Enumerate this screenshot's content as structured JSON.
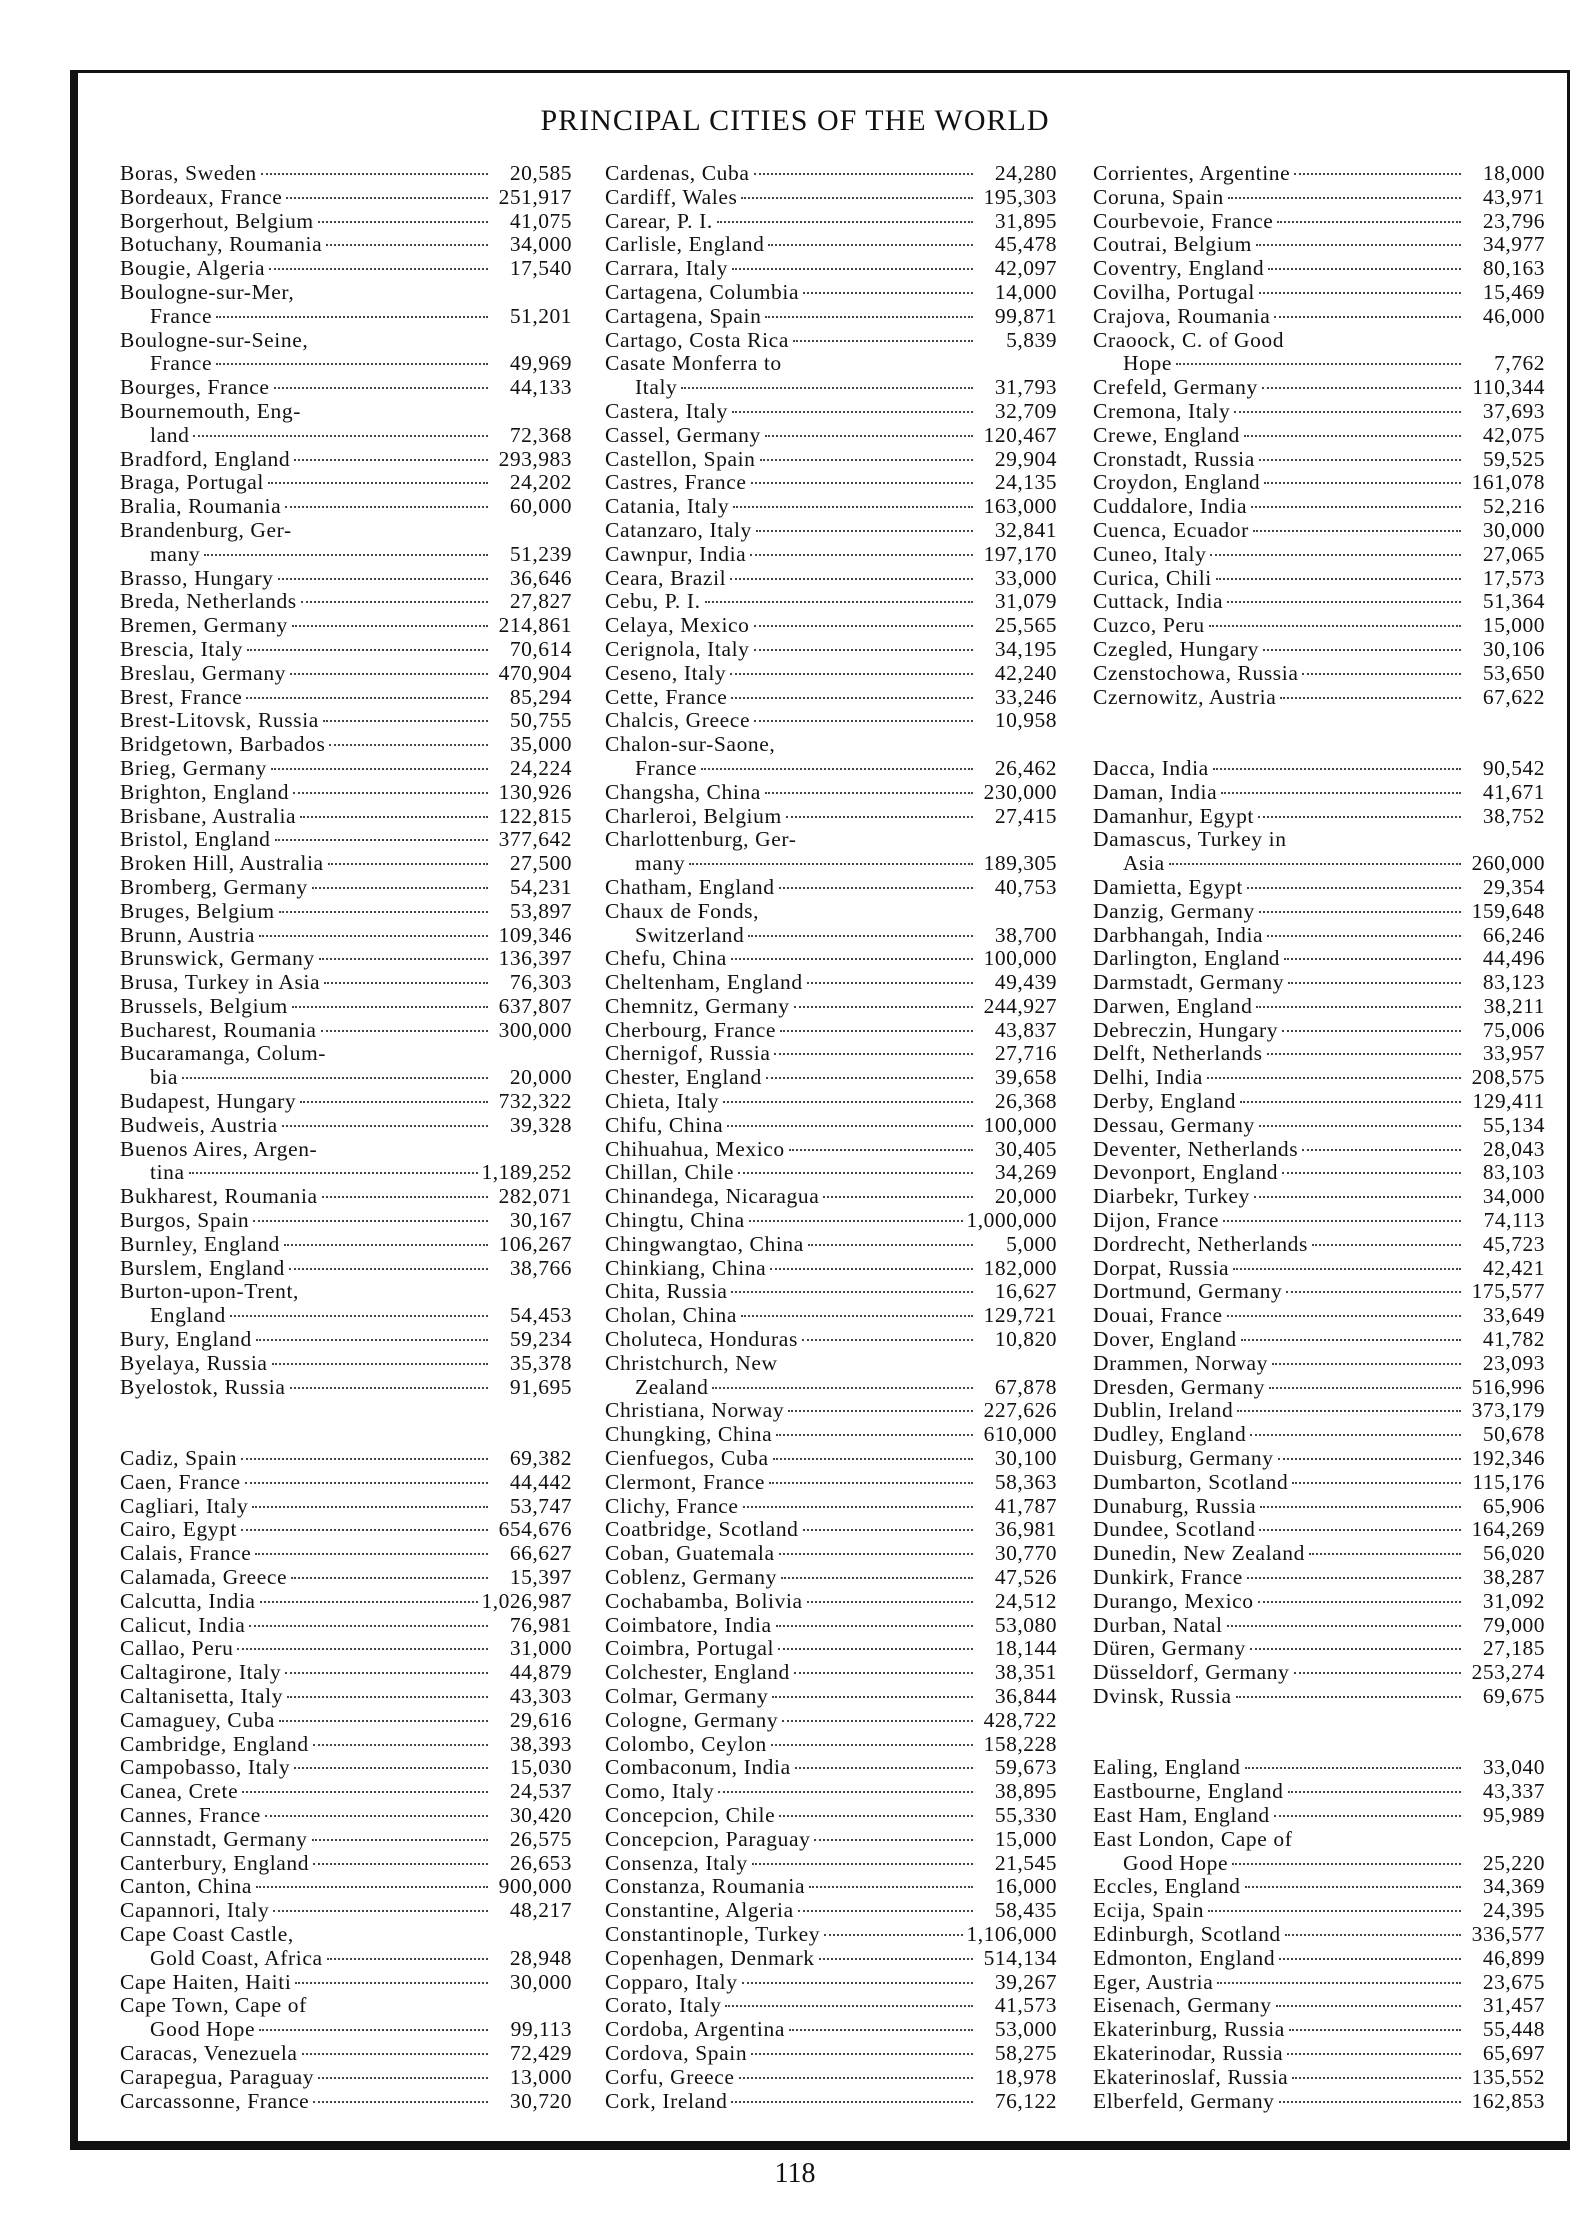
{
  "title": "PRINCIPAL CITIES OF THE WORLD",
  "page_number": "118",
  "columns": [
    [
      {
        "n": "Boras, Sweden",
        "v": "20,585"
      },
      {
        "n": "Bordeaux, France",
        "v": "251,917"
      },
      {
        "n": "Borgerhout, Belgium",
        "v": "41,075"
      },
      {
        "n": "Botuchany, Roumania",
        "v": "34,000"
      },
      {
        "n": "Bougie, Algeria",
        "v": "17,540"
      },
      {
        "n": "Boulogne-sur-Mer,",
        "v": ""
      },
      {
        "n": "France",
        "v": "51,201",
        "c": true
      },
      {
        "n": "Boulogne-sur-Seine,",
        "v": ""
      },
      {
        "n": "France",
        "v": "49,969",
        "c": true
      },
      {
        "n": "Bourges, France",
        "v": "44,133"
      },
      {
        "n": "Bournemouth, Eng-",
        "v": ""
      },
      {
        "n": "land",
        "v": "72,368",
        "c": true
      },
      {
        "n": "Bradford, England",
        "v": "293,983"
      },
      {
        "n": "Braga, Portugal",
        "v": "24,202"
      },
      {
        "n": "Bralia, Roumania",
        "v": "60,000"
      },
      {
        "n": "Brandenburg, Ger-",
        "v": ""
      },
      {
        "n": "many",
        "v": "51,239",
        "c": true
      },
      {
        "n": "Brasso, Hungary",
        "v": "36,646"
      },
      {
        "n": "Breda, Netherlands",
        "v": "27,827"
      },
      {
        "n": "Bremen, Germany",
        "v": "214,861"
      },
      {
        "n": "Brescia, Italy",
        "v": "70,614"
      },
      {
        "n": "Breslau, Germany",
        "v": "470,904"
      },
      {
        "n": "Brest, France",
        "v": "85,294"
      },
      {
        "n": "Brest-Litovsk, Russia",
        "v": "50,755"
      },
      {
        "n": "Bridgetown, Barbados",
        "v": "35,000"
      },
      {
        "n": "Brieg, Germany",
        "v": "24,224"
      },
      {
        "n": "Brighton, England",
        "v": "130,926"
      },
      {
        "n": "Brisbane, Australia",
        "v": "122,815"
      },
      {
        "n": "Bristol, England",
        "v": "377,642"
      },
      {
        "n": "Broken Hill, Australia",
        "v": "27,500"
      },
      {
        "n": "Bromberg, Germany",
        "v": "54,231"
      },
      {
        "n": "Bruges, Belgium",
        "v": "53,897"
      },
      {
        "n": "Brunn, Austria",
        "v": "109,346"
      },
      {
        "n": "Brunswick, Germany",
        "v": "136,397"
      },
      {
        "n": "Brusa, Turkey in Asia",
        "v": "76,303"
      },
      {
        "n": "Brussels, Belgium",
        "v": "637,807"
      },
      {
        "n": "Bucharest, Roumania",
        "v": "300,000"
      },
      {
        "n": "Bucaramanga, Colum-",
        "v": ""
      },
      {
        "n": "bia",
        "v": "20,000",
        "c": true
      },
      {
        "n": "Budapest, Hungary",
        "v": "732,322"
      },
      {
        "n": "Budweis, Austria",
        "v": "39,328"
      },
      {
        "n": "Buenos Aires, Argen-",
        "v": ""
      },
      {
        "n": "tina",
        "v": "1,189,252",
        "c": true
      },
      {
        "n": "Bukharest, Roumania",
        "v": "282,071"
      },
      {
        "n": "Burgos, Spain",
        "v": "30,167"
      },
      {
        "n": "Burnley, England",
        "v": "106,267"
      },
      {
        "n": "Burslem, England",
        "v": "38,766"
      },
      {
        "n": "Burton-upon-Trent,",
        "v": ""
      },
      {
        "n": "England",
        "v": "54,453",
        "c": true
      },
      {
        "n": "Bury, England",
        "v": "59,234"
      },
      {
        "n": "Byelaya, Russia",
        "v": "35,378"
      },
      {
        "n": "Byelostok, Russia",
        "v": "91,695"
      },
      {
        "n": "",
        "v": ""
      },
      {
        "n": "",
        "v": ""
      },
      {
        "n": "Cadiz, Spain",
        "v": "69,382"
      },
      {
        "n": "Caen, France",
        "v": "44,442"
      },
      {
        "n": "Cagliari, Italy",
        "v": "53,747"
      },
      {
        "n": "Cairo, Egypt",
        "v": "654,676"
      },
      {
        "n": "Calais, France",
        "v": "66,627"
      },
      {
        "n": "Calamada, Greece",
        "v": "15,397"
      },
      {
        "n": "Calcutta, India",
        "v": "1,026,987"
      },
      {
        "n": "Calicut, India",
        "v": "76,981"
      },
      {
        "n": "Callao, Peru",
        "v": "31,000"
      },
      {
        "n": "Caltagirone, Italy",
        "v": "44,879"
      },
      {
        "n": "Caltanisetta, Italy",
        "v": "43,303"
      },
      {
        "n": "Camaguey, Cuba",
        "v": "29,616"
      },
      {
        "n": "Cambridge, England",
        "v": "38,393"
      },
      {
        "n": "Campobasso, Italy",
        "v": "15,030"
      },
      {
        "n": "Canea, Crete",
        "v": "24,537"
      },
      {
        "n": "Cannes, France",
        "v": "30,420"
      },
      {
        "n": "Cannstadt, Germany",
        "v": "26,575"
      },
      {
        "n": "Canterbury, England",
        "v": "26,653"
      },
      {
        "n": "Canton, China",
        "v": "900,000"
      },
      {
        "n": "Capannori, Italy",
        "v": "48,217"
      },
      {
        "n": "Cape Coast Castle,",
        "v": ""
      },
      {
        "n": "Gold Coast, Africa",
        "v": "28,948",
        "c": true
      },
      {
        "n": "Cape Haiten, Haiti",
        "v": "30,000"
      },
      {
        "n": "Cape Town, Cape of",
        "v": ""
      },
      {
        "n": "Good Hope",
        "v": "99,113",
        "c": true
      },
      {
        "n": "Caracas, Venezuela",
        "v": "72,429"
      },
      {
        "n": "Carapegua, Paraguay",
        "v": "13,000"
      },
      {
        "n": "Carcassonne, France",
        "v": "30,720"
      }
    ],
    [
      {
        "n": "Cardenas, Cuba",
        "v": "24,280"
      },
      {
        "n": "Cardiff, Wales",
        "v": "195,303"
      },
      {
        "n": "Carear, P. I.",
        "v": "31,895"
      },
      {
        "n": "Carlisle, England",
        "v": "45,478"
      },
      {
        "n": "Carrara, Italy",
        "v": "42,097"
      },
      {
        "n": "Cartagena, Columbia",
        "v": "14,000"
      },
      {
        "n": "Cartagena, Spain",
        "v": "99,871"
      },
      {
        "n": "Cartago, Costa Rica",
        "v": "5,839"
      },
      {
        "n": "Casate Monferra to",
        "v": ""
      },
      {
        "n": "Italy",
        "v": "31,793",
        "c": true
      },
      {
        "n": "Castera, Italy",
        "v": "32,709"
      },
      {
        "n": "Cassel, Germany",
        "v": "120,467"
      },
      {
        "n": "Castellon, Spain",
        "v": "29,904"
      },
      {
        "n": "Castres, France",
        "v": "24,135"
      },
      {
        "n": "Catania, Italy",
        "v": "163,000"
      },
      {
        "n": "Catanzaro, Italy",
        "v": "32,841"
      },
      {
        "n": "Cawnpur, India",
        "v": "197,170"
      },
      {
        "n": "Ceara, Brazil",
        "v": "33,000"
      },
      {
        "n": "Cebu, P. I.",
        "v": "31,079"
      },
      {
        "n": "Celaya, Mexico",
        "v": "25,565"
      },
      {
        "n": "Cerignola, Italy",
        "v": "34,195"
      },
      {
        "n": "Ceseno, Italy",
        "v": "42,240"
      },
      {
        "n": "Cette, France",
        "v": "33,246"
      },
      {
        "n": "Chalcis, Greece",
        "v": "10,958"
      },
      {
        "n": "Chalon-sur-Saone,",
        "v": ""
      },
      {
        "n": "France",
        "v": "26,462",
        "c": true
      },
      {
        "n": "Changsha, China",
        "v": "230,000"
      },
      {
        "n": "Charleroi, Belgium",
        "v": "27,415"
      },
      {
        "n": "Charlottenburg, Ger-",
        "v": ""
      },
      {
        "n": "many",
        "v": "189,305",
        "c": true
      },
      {
        "n": "Chatham, England",
        "v": "40,753"
      },
      {
        "n": "Chaux de Fonds,",
        "v": ""
      },
      {
        "n": "Switzerland",
        "v": "38,700",
        "c": true
      },
      {
        "n": "Chefu, China",
        "v": "100,000"
      },
      {
        "n": "Cheltenham, England",
        "v": "49,439"
      },
      {
        "n": "Chemnitz, Germany",
        "v": "244,927"
      },
      {
        "n": "Cherbourg, France",
        "v": "43,837"
      },
      {
        "n": "Chernigof, Russia",
        "v": "27,716"
      },
      {
        "n": "Chester, England",
        "v": "39,658"
      },
      {
        "n": "Chieta, Italy",
        "v": "26,368"
      },
      {
        "n": "Chifu, China",
        "v": "100,000"
      },
      {
        "n": "Chihuahua, Mexico",
        "v": "30,405"
      },
      {
        "n": "Chillan, Chile",
        "v": "34,269"
      },
      {
        "n": "Chinandega, Nicaragua",
        "v": "20,000"
      },
      {
        "n": "Chingtu, China",
        "v": "1,000,000"
      },
      {
        "n": "Chingwangtao, China",
        "v": "5,000"
      },
      {
        "n": "Chinkiang, China",
        "v": "182,000"
      },
      {
        "n": "Chita, Russia",
        "v": "16,627"
      },
      {
        "n": "Cholan, China",
        "v": "129,721"
      },
      {
        "n": "Choluteca, Honduras",
        "v": "10,820"
      },
      {
        "n": "Christchurch, New",
        "v": ""
      },
      {
        "n": "Zealand",
        "v": "67,878",
        "c": true
      },
      {
        "n": "Christiana, Norway",
        "v": "227,626"
      },
      {
        "n": "Chungking, China",
        "v": "610,000"
      },
      {
        "n": "Cienfuegos, Cuba",
        "v": "30,100"
      },
      {
        "n": "Clermont, France",
        "v": "58,363"
      },
      {
        "n": "Clichy, France",
        "v": "41,787"
      },
      {
        "n": "Coatbridge, Scotland",
        "v": "36,981"
      },
      {
        "n": "Coban, Guatemala",
        "v": "30,770"
      },
      {
        "n": "Coblenz, Germany",
        "v": "47,526"
      },
      {
        "n": "Cochabamba, Bolivia",
        "v": "24,512"
      },
      {
        "n": "Coimbatore, India",
        "v": "53,080"
      },
      {
        "n": "Coimbra, Portugal",
        "v": "18,144"
      },
      {
        "n": "Colchester, England",
        "v": "38,351"
      },
      {
        "n": "Colmar, Germany",
        "v": "36,844"
      },
      {
        "n": "Cologne, Germany",
        "v": "428,722"
      },
      {
        "n": "Colombo, Ceylon",
        "v": "158,228"
      },
      {
        "n": "Combaconum, India",
        "v": "59,673"
      },
      {
        "n": "Como, Italy",
        "v": "38,895"
      },
      {
        "n": "Concepcion, Chile",
        "v": "55,330"
      },
      {
        "n": "Concepcion, Paraguay",
        "v": "15,000"
      },
      {
        "n": "Consenza, Italy",
        "v": "21,545"
      },
      {
        "n": "Constanza, Roumania",
        "v": "16,000"
      },
      {
        "n": "Constantine, Algeria",
        "v": "58,435"
      },
      {
        "n": "Constantinople, Turkey",
        "v": "1,106,000"
      },
      {
        "n": "Copenhagen, Denmark",
        "v": "514,134"
      },
      {
        "n": "Copparo, Italy",
        "v": "39,267"
      },
      {
        "n": "Corato, Italy",
        "v": "41,573"
      },
      {
        "n": "Cordoba, Argentina",
        "v": "53,000"
      },
      {
        "n": "Cordova, Spain",
        "v": "58,275"
      },
      {
        "n": "Corfu, Greece",
        "v": "18,978"
      },
      {
        "n": "Cork, Ireland",
        "v": "76,122"
      }
    ],
    [
      {
        "n": "Corrientes, Argentine",
        "v": "18,000"
      },
      {
        "n": "Coruna, Spain",
        "v": "43,971"
      },
      {
        "n": "Courbevoie, France",
        "v": "23,796"
      },
      {
        "n": "Coutrai, Belgium",
        "v": "34,977"
      },
      {
        "n": "Coventry, England",
        "v": "80,163"
      },
      {
        "n": "Covilha, Portugal",
        "v": "15,469"
      },
      {
        "n": "Crajova, Roumania",
        "v": "46,000"
      },
      {
        "n": "Craoock, C. of Good",
        "v": ""
      },
      {
        "n": "Hope",
        "v": "7,762",
        "c": true
      },
      {
        "n": "Crefeld, Germany",
        "v": "110,344"
      },
      {
        "n": "Cremona, Italy",
        "v": "37,693"
      },
      {
        "n": "Crewe, England",
        "v": "42,075"
      },
      {
        "n": "Cronstadt, Russia",
        "v": "59,525"
      },
      {
        "n": "Croydon, England",
        "v": "161,078"
      },
      {
        "n": "Cuddalore, India",
        "v": "52,216"
      },
      {
        "n": "Cuenca, Ecuador",
        "v": "30,000"
      },
      {
        "n": "Cuneo, Italy",
        "v": "27,065"
      },
      {
        "n": "Curica, Chili",
        "v": "17,573"
      },
      {
        "n": "Cuttack, India",
        "v": "51,364"
      },
      {
        "n": "Cuzco, Peru",
        "v": "15,000"
      },
      {
        "n": "Czegled, Hungary",
        "v": "30,106"
      },
      {
        "n": "Czenstochowa, Russia",
        "v": "53,650"
      },
      {
        "n": "Czernowitz, Austria",
        "v": "67,622"
      },
      {
        "n": "",
        "v": ""
      },
      {
        "n": "",
        "v": ""
      },
      {
        "n": "Dacca, India",
        "v": "90,542"
      },
      {
        "n": "Daman, India",
        "v": "41,671"
      },
      {
        "n": "Damanhur, Egypt",
        "v": "38,752"
      },
      {
        "n": "Damascus, Turkey in",
        "v": ""
      },
      {
        "n": "Asia",
        "v": "260,000",
        "c": true
      },
      {
        "n": "Damietta, Egypt",
        "v": "29,354"
      },
      {
        "n": "Danzig, Germany",
        "v": "159,648"
      },
      {
        "n": "Darbhangah, India",
        "v": "66,246"
      },
      {
        "n": "Darlington, England",
        "v": "44,496"
      },
      {
        "n": "Darmstadt, Germany",
        "v": "83,123"
      },
      {
        "n": "Darwen, England",
        "v": "38,211"
      },
      {
        "n": "Debreczin, Hungary",
        "v": "75,006"
      },
      {
        "n": "Delft, Netherlands",
        "v": "33,957"
      },
      {
        "n": "Delhi, India",
        "v": "208,575"
      },
      {
        "n": "Derby, England",
        "v": "129,411"
      },
      {
        "n": "Dessau, Germany",
        "v": "55,134"
      },
      {
        "n": "Deventer, Netherlands",
        "v": "28,043"
      },
      {
        "n": "Devonport, England",
        "v": "83,103"
      },
      {
        "n": "Diarbekr, Turkey",
        "v": "34,000"
      },
      {
        "n": "Dijon, France",
        "v": "74,113"
      },
      {
        "n": "Dordrecht, Netherlands",
        "v": "45,723"
      },
      {
        "n": "Dorpat, Russia",
        "v": "42,421"
      },
      {
        "n": "Dortmund, Germany",
        "v": "175,577"
      },
      {
        "n": "Douai, France",
        "v": "33,649"
      },
      {
        "n": "Dover, England",
        "v": "41,782"
      },
      {
        "n": "Drammen, Norway",
        "v": "23,093"
      },
      {
        "n": "Dresden, Germany",
        "v": "516,996"
      },
      {
        "n": "Dublin, Ireland",
        "v": "373,179"
      },
      {
        "n": "Dudley, England",
        "v": "50,678"
      },
      {
        "n": "Duisburg, Germany",
        "v": "192,346"
      },
      {
        "n": "Dumbarton, Scotland",
        "v": "115,176"
      },
      {
        "n": "Dunaburg, Russia",
        "v": "65,906"
      },
      {
        "n": "Dundee, Scotland",
        "v": "164,269"
      },
      {
        "n": "Dunedin, New Zealand",
        "v": "56,020"
      },
      {
        "n": "Dunkirk, France",
        "v": "38,287"
      },
      {
        "n": "Durango, Mexico",
        "v": "31,092"
      },
      {
        "n": "Durban, Natal",
        "v": "79,000"
      },
      {
        "n": "Düren, Germany",
        "v": "27,185"
      },
      {
        "n": "Düsseldorf, Germany",
        "v": "253,274"
      },
      {
        "n": "Dvinsk, Russia",
        "v": "69,675"
      },
      {
        "n": "",
        "v": ""
      },
      {
        "n": "",
        "v": ""
      },
      {
        "n": "Ealing, England",
        "v": "33,040"
      },
      {
        "n": "Eastbourne, England",
        "v": "43,337"
      },
      {
        "n": "East Ham, England",
        "v": "95,989"
      },
      {
        "n": "East London, Cape of",
        "v": ""
      },
      {
        "n": "Good Hope",
        "v": "25,220",
        "c": true
      },
      {
        "n": "Eccles, England",
        "v": "34,369"
      },
      {
        "n": "Ecija, Spain",
        "v": "24,395"
      },
      {
        "n": "Edinburgh, Scotland",
        "v": "336,577"
      },
      {
        "n": "Edmonton, England",
        "v": "46,899"
      },
      {
        "n": "Eger, Austria",
        "v": "23,675"
      },
      {
        "n": "Eisenach, Germany",
        "v": "31,457"
      },
      {
        "n": "Ekaterinburg, Russia",
        "v": "55,448"
      },
      {
        "n": "Ekaterinodar, Russia",
        "v": "65,697"
      },
      {
        "n": "Ekaterinoslaf, Russia",
        "v": "135,552"
      },
      {
        "n": "Elberfeld, Germany",
        "v": "162,853"
      }
    ]
  ]
}
